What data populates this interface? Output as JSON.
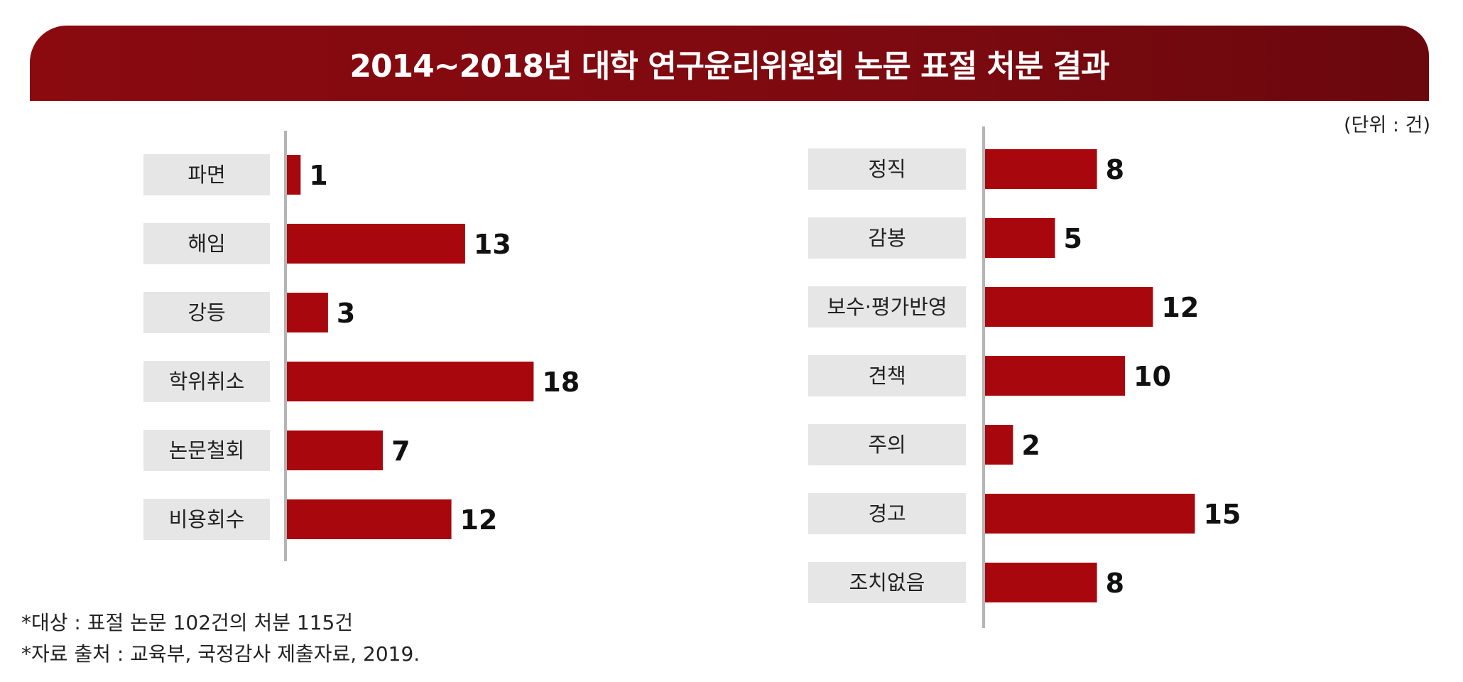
{
  "title": "2014~2018년 대학 연구윤리위원회 논문 표절 처분 결과",
  "unit": "(단위 : 건)",
  "notes": [
    "*대상 : 표절 논문 102건의 처분 115건",
    "*자료 출처 : 교육부, 국정감사 제출자료, 2019."
  ],
  "colors": {
    "bar": "#a8070d",
    "label_box": "#e6e6e6",
    "title_bg": "#7d0a10",
    "axis": "#b5b5b5"
  },
  "chart_data": [
    {
      "type": "bar",
      "orientation": "horizontal",
      "categories": [
        "파면",
        "해임",
        "강등",
        "학위취소",
        "논문철회",
        "비용회수"
      ],
      "values": [
        1,
        13,
        3,
        18,
        7,
        12
      ],
      "title": "",
      "xlabel": "",
      "ylabel": "",
      "data_labels": true,
      "grid": false
    },
    {
      "type": "bar",
      "orientation": "horizontal",
      "categories": [
        "정직",
        "감봉",
        "보수·평가반영",
        "견책",
        "주의",
        "경고",
        "조치없음"
      ],
      "values": [
        8,
        5,
        12,
        10,
        2,
        15,
        8
      ],
      "title": "",
      "xlabel": "",
      "ylabel": "",
      "data_labels": true,
      "grid": false
    }
  ]
}
